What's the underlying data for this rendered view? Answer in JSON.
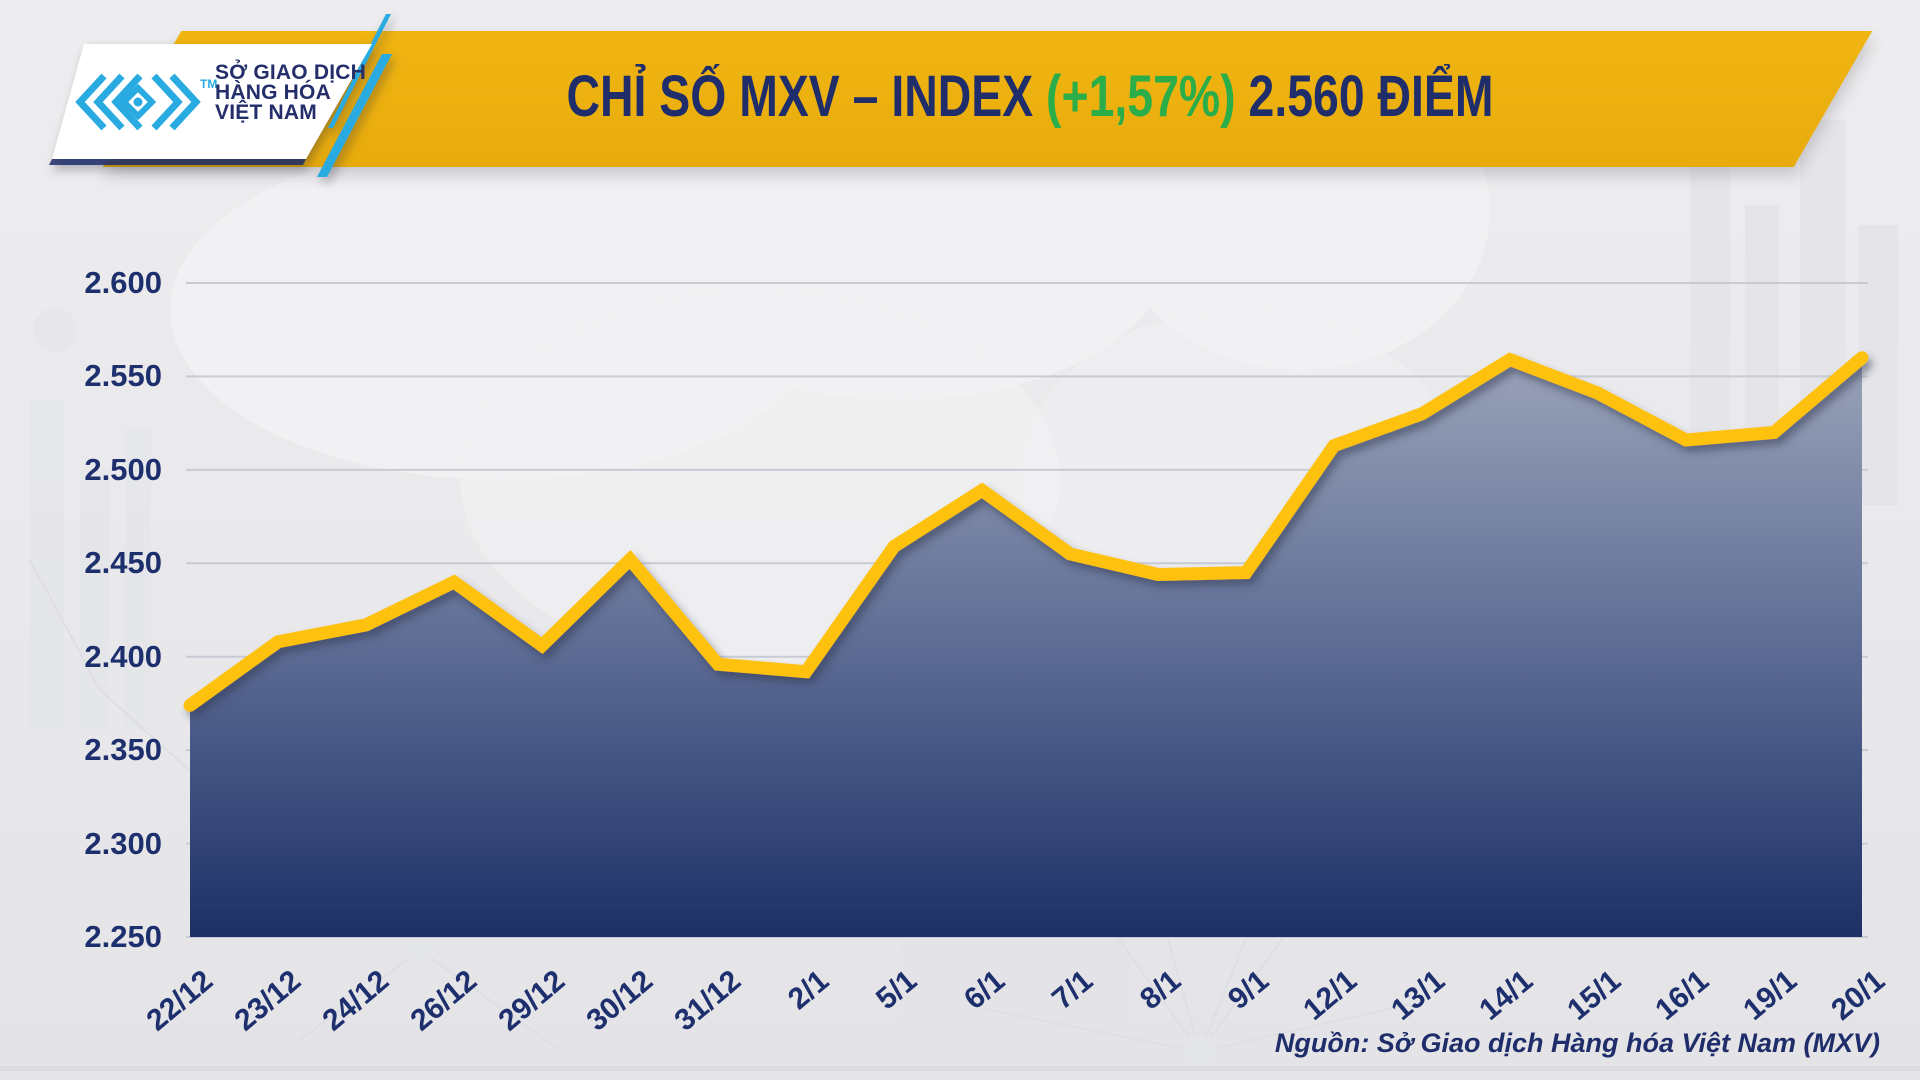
{
  "header": {
    "logo": {
      "line1": "SỞ GIAO DỊCH",
      "line2": "HÀNG HÓA",
      "line3": "VIỆT NAM",
      "tm": "TM"
    },
    "title": {
      "part1": "CHỈ SỐ MXV – INDEX ",
      "change": "(+1,57%)",
      "part2": " 2.560 ĐIỂM"
    }
  },
  "footer": {
    "source": "Nguồn: Sở Giao dịch Hàng hóa Việt Nam (MXV)"
  },
  "colors": {
    "banner_gold": "#EDB00F",
    "line_gold": "#FEC10D",
    "navy": "#1F2E6B",
    "green": "#2BAD49",
    "cyan": "#29ABE2",
    "grid": "#C7CBD4",
    "fill_top": "#9BA4B9",
    "fill_mid": "#5E6D95",
    "fill_bottom": "#1D2F66"
  },
  "chart_data": {
    "type": "area",
    "title": "CHỈ SỐ MXV – INDEX (+1,57%) 2.560 ĐIỂM",
    "change_pct": "+1,57%",
    "latest_value": "2.560",
    "unit": "ĐIỂM",
    "categories": [
      "22/12",
      "23/12",
      "24/12",
      "26/12",
      "29/12",
      "30/12",
      "31/12",
      "2/1",
      "5/1",
      "6/1",
      "7/1",
      "8/1",
      "9/1",
      "12/1",
      "13/1",
      "14/1",
      "15/1",
      "16/1",
      "19/1",
      "20/1"
    ],
    "values": [
      2374,
      2408,
      2417,
      2440,
      2406,
      2452,
      2396,
      2392,
      2459,
      2489,
      2455,
      2444,
      2445,
      2513,
      2530,
      2559,
      2541,
      2516,
      2520,
      2560
    ],
    "y_tick_labels": [
      "2.600",
      "2.550",
      "2.500",
      "2.450",
      "2.400",
      "2.350",
      "2.300",
      "2.250"
    ],
    "ylim": [
      2250,
      2600
    ],
    "xlabel": "",
    "ylabel": "",
    "grid": "horizontal",
    "legend": "none",
    "series_name": "MXV-Index"
  }
}
